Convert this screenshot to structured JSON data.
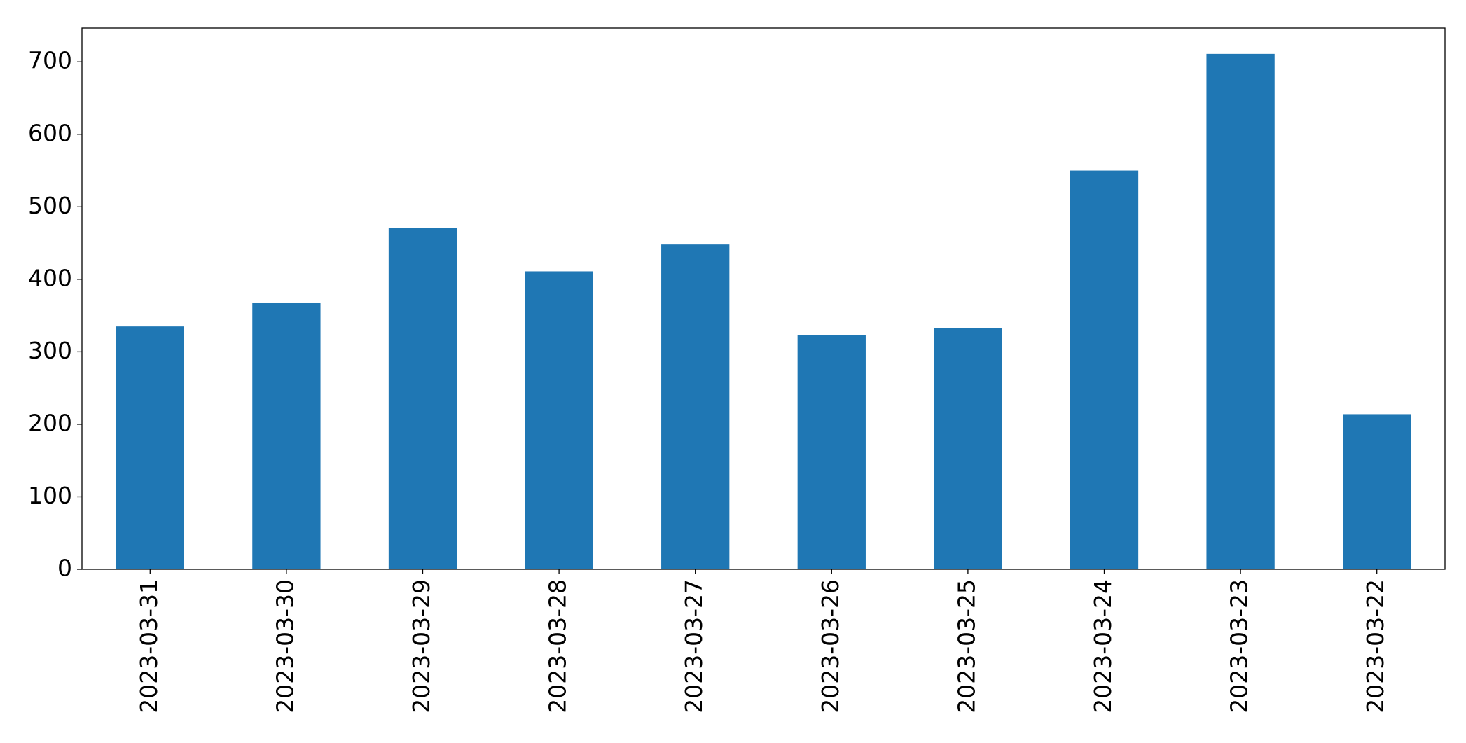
{
  "chart_data": {
    "type": "bar",
    "categories": [
      "2023-03-31",
      "2023-03-30",
      "2023-03-29",
      "2023-03-28",
      "2023-03-27",
      "2023-03-26",
      "2023-03-25",
      "2023-03-24",
      "2023-03-23",
      "2023-03-22"
    ],
    "values": [
      335,
      368,
      471,
      411,
      448,
      323,
      333,
      550,
      711,
      214
    ],
    "color": "#1f77b4",
    "ylim": [
      0,
      746.6
    ],
    "yticks": [
      0,
      100,
      200,
      300,
      400,
      500,
      600,
      700
    ],
    "grid": false
  }
}
